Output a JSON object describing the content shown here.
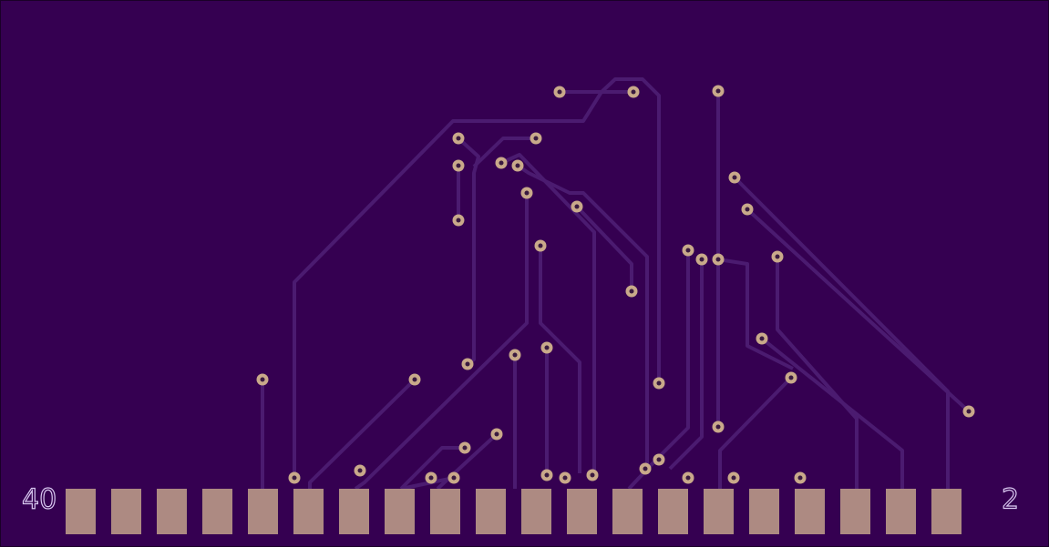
{
  "labels": {
    "left": "40",
    "right": "2"
  }
}
